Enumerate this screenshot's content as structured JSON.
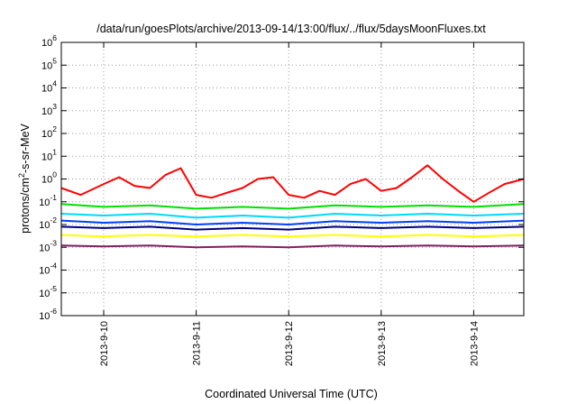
{
  "chart_data": {
    "type": "line",
    "title": "/data/run/goesPlots/archive/2013-09-14/13:00/flux/../flux/5daysMoonFluxes.txt",
    "xlabel": "Coordinated Universal Time (UTC)",
    "ylabel": {
      "prefix": "protons/cm",
      "superscript": "2",
      "suffix": "-s-sr-MeV"
    },
    "y_scale": "log",
    "ylim": [
      1e-06,
      1000000.0
    ],
    "y_ticks": [
      {
        "base": "10",
        "exp": "-6",
        "value": 1e-06
      },
      {
        "base": "10",
        "exp": "-5",
        "value": 1e-05
      },
      {
        "base": "10",
        "exp": "-4",
        "value": 0.0001
      },
      {
        "base": "10",
        "exp": "-3",
        "value": 0.001
      },
      {
        "base": "10",
        "exp": "-2",
        "value": 0.01
      },
      {
        "base": "10",
        "exp": "-1",
        "value": 0.1
      },
      {
        "base": "10",
        "exp": "0",
        "value": 1
      },
      {
        "base": "10",
        "exp": "1",
        "value": 10
      },
      {
        "base": "10",
        "exp": "2",
        "value": 100
      },
      {
        "base": "10",
        "exp": "3",
        "value": 1000
      },
      {
        "base": "10",
        "exp": "4",
        "value": 10000
      },
      {
        "base": "10",
        "exp": "5",
        "value": 100000
      },
      {
        "base": "10",
        "exp": "6",
        "value": 1000000
      }
    ],
    "xlim": [
      "2013-09-09 13:00",
      "2013-09-14 13:00"
    ],
    "x_ticks": [
      {
        "label": "2013-9-10",
        "value": "2013-09-10 00:00"
      },
      {
        "label": "2013-9-11",
        "value": "2013-09-11 00:00"
      },
      {
        "label": "2013-9-12",
        "value": "2013-09-12 00:00"
      },
      {
        "label": "2013-9-13",
        "value": "2013-09-13 00:00"
      },
      {
        "label": "2013-9-14",
        "value": "2013-09-14 00:00"
      }
    ],
    "grid": true,
    "legend": "none",
    "series": [
      {
        "color": "#ff0000",
        "x": [
          "2013-09-09 13:00",
          "2013-09-09 18:00",
          "2013-09-10 00:00",
          "2013-09-10 04:00",
          "2013-09-10 08:00",
          "2013-09-10 12:00",
          "2013-09-10 16:00",
          "2013-09-10 20:00",
          "2013-09-11 00:00",
          "2013-09-11 04:00",
          "2013-09-11 08:00",
          "2013-09-11 12:00",
          "2013-09-11 16:00",
          "2013-09-11 20:00",
          "2013-09-12 00:00",
          "2013-09-12 04:00",
          "2013-09-12 08:00",
          "2013-09-12 12:00",
          "2013-09-12 16:00",
          "2013-09-12 20:00",
          "2013-09-13 00:00",
          "2013-09-13 04:00",
          "2013-09-13 08:00",
          "2013-09-13 12:00",
          "2013-09-13 16:00",
          "2013-09-13 20:00",
          "2013-09-14 00:00",
          "2013-09-14 04:00",
          "2013-09-14 08:00",
          "2013-09-14 13:00"
        ],
        "y": [
          0.4,
          0.2,
          0.6,
          1.2,
          0.5,
          0.4,
          1.5,
          3.0,
          0.2,
          0.15,
          0.25,
          0.4,
          1.0,
          1.2,
          0.2,
          0.15,
          0.3,
          0.2,
          0.6,
          1.0,
          0.3,
          0.4,
          1.2,
          4.0,
          1.0,
          0.3,
          0.1,
          0.25,
          0.6,
          1.0
        ]
      },
      {
        "color": "#00e000",
        "x": [
          "2013-09-09 13:00",
          "2013-09-10 00:00",
          "2013-09-10 12:00",
          "2013-09-11 00:00",
          "2013-09-11 12:00",
          "2013-09-12 00:00",
          "2013-09-12 12:00",
          "2013-09-13 00:00",
          "2013-09-13 12:00",
          "2013-09-14 00:00",
          "2013-09-14 13:00"
        ],
        "y": [
          0.08,
          0.06,
          0.07,
          0.05,
          0.06,
          0.05,
          0.07,
          0.06,
          0.07,
          0.06,
          0.08
        ]
      },
      {
        "color": "#00d8ff",
        "x": [
          "2013-09-09 13:00",
          "2013-09-10 00:00",
          "2013-09-10 12:00",
          "2013-09-11 00:00",
          "2013-09-11 12:00",
          "2013-09-12 00:00",
          "2013-09-12 12:00",
          "2013-09-13 00:00",
          "2013-09-13 12:00",
          "2013-09-14 00:00",
          "2013-09-14 13:00"
        ],
        "y": [
          0.03,
          0.025,
          0.03,
          0.02,
          0.025,
          0.02,
          0.03,
          0.025,
          0.03,
          0.025,
          0.03
        ]
      },
      {
        "color": "#0040ff",
        "x": [
          "2013-09-09 13:00",
          "2013-09-10 00:00",
          "2013-09-10 12:00",
          "2013-09-11 00:00",
          "2013-09-11 12:00",
          "2013-09-12 00:00",
          "2013-09-12 12:00",
          "2013-09-13 00:00",
          "2013-09-13 12:00",
          "2013-09-14 00:00",
          "2013-09-14 13:00"
        ],
        "y": [
          0.015,
          0.012,
          0.014,
          0.01,
          0.012,
          0.01,
          0.014,
          0.012,
          0.014,
          0.012,
          0.015
        ]
      },
      {
        "color": "#000080",
        "x": [
          "2013-09-09 13:00",
          "2013-09-10 00:00",
          "2013-09-10 12:00",
          "2013-09-11 00:00",
          "2013-09-11 12:00",
          "2013-09-12 00:00",
          "2013-09-12 12:00",
          "2013-09-13 00:00",
          "2013-09-13 12:00",
          "2013-09-14 00:00",
          "2013-09-14 13:00"
        ],
        "y": [
          0.008,
          0.007,
          0.008,
          0.006,
          0.007,
          0.006,
          0.008,
          0.007,
          0.008,
          0.007,
          0.008
        ]
      },
      {
        "color": "#ffff00",
        "x": [
          "2013-09-09 13:00",
          "2013-09-10 00:00",
          "2013-09-10 12:00",
          "2013-09-11 00:00",
          "2013-09-11 12:00",
          "2013-09-12 00:00",
          "2013-09-12 12:00",
          "2013-09-13 00:00",
          "2013-09-13 12:00",
          "2013-09-14 00:00",
          "2013-09-14 13:00"
        ],
        "y": [
          0.0035,
          0.003,
          0.0035,
          0.003,
          0.0035,
          0.003,
          0.0035,
          0.003,
          0.0035,
          0.003,
          0.0035
        ]
      },
      {
        "color": "#802060",
        "x": [
          "2013-09-09 13:00",
          "2013-09-10 00:00",
          "2013-09-10 12:00",
          "2013-09-11 00:00",
          "2013-09-11 12:00",
          "2013-09-12 00:00",
          "2013-09-12 12:00",
          "2013-09-13 00:00",
          "2013-09-13 12:00",
          "2013-09-14 00:00",
          "2013-09-14 13:00"
        ],
        "y": [
          0.0012,
          0.0011,
          0.0012,
          0.001,
          0.0011,
          0.001,
          0.0012,
          0.0011,
          0.0012,
          0.0011,
          0.0012
        ]
      }
    ]
  }
}
